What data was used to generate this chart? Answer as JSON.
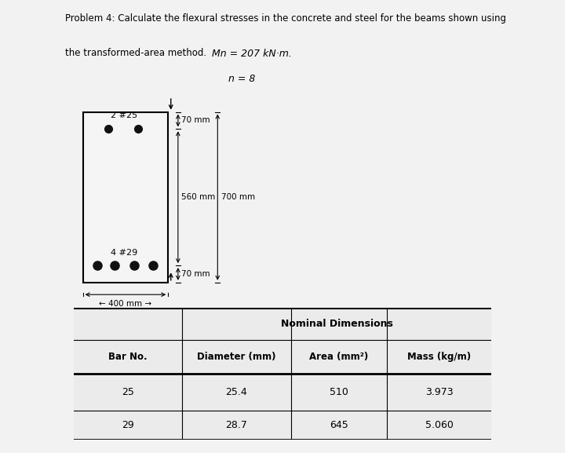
{
  "title_line1": "Problem 4: Calculate the flexural stresses in the concrete and steel for the beams shown using",
  "title_line2": "the transformed-area method.",
  "page_bg": "#f2f2f2",
  "diagram_bg": "#e0e0e0",
  "beam_fill": "#f5f5f5",
  "dot_color": "#111111",
  "top_bars_label": "2 #25",
  "bottom_bars_label": "4 #29",
  "dim_70top": "70 mm",
  "dim_560": "560 mm",
  "dim_700": "700 mm",
  "dim_70bot": "70 mm",
  "dim_400": "← 400 mm →",
  "mn_text": "Mn = 207 kN·m.",
  "n_text": "n = 8",
  "table_subheader": "Nominal Dimensions",
  "table_headers": [
    "Bar No.",
    "Diameter (mm)",
    "Area (mm²)",
    "Mass (kg/m)"
  ],
  "table_rows": [
    [
      "25",
      "25.4",
      "510",
      "3.973"
    ],
    [
      "29",
      "28.7",
      "645",
      "5.060"
    ]
  ]
}
